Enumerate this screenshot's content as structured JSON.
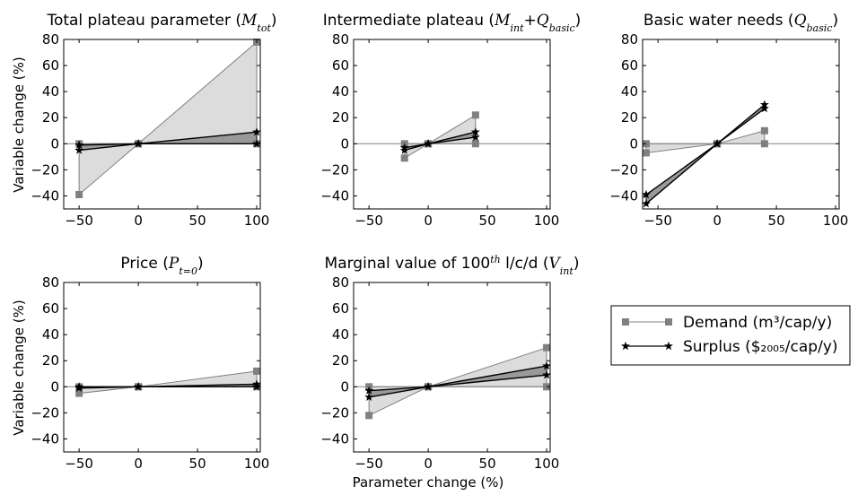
{
  "figure": {
    "ylabel": "Variable change (%)",
    "xlabel": "Parameter change (%)"
  },
  "legend": {
    "entries": [
      {
        "label": "Demand (m³/cap/y)",
        "marker": "square",
        "color": "#808080"
      },
      {
        "label": "Surplus ($₂₀₀₅/cap/y)",
        "marker": "star",
        "color": "#000000"
      }
    ]
  },
  "colors": {
    "demand": "#808080",
    "demand_fill": "#dcdcdc",
    "surplus": "#000000",
    "surplus_fill": "#999999",
    "zero_line": "#808080"
  },
  "chart_data": [
    {
      "type": "line",
      "title": "Total plateau parameter (M_tot)",
      "xlim": [
        -63,
        103
      ],
      "ylim": [
        -50,
        80
      ],
      "xticks": [
        -50,
        0,
        50,
        100
      ],
      "yticks": [
        -40,
        -20,
        0,
        20,
        40,
        60,
        80
      ],
      "x": [
        -50,
        0,
        100
      ],
      "series": [
        {
          "name": "Demand (m³/cap/y)",
          "upper": [
            0,
            0,
            78
          ],
          "lower": [
            -39,
            0,
            0
          ]
        },
        {
          "name": "Surplus ($₂₀₀₅/cap/y)",
          "upper": [
            -1,
            0,
            9
          ],
          "lower": [
            -5,
            0,
            0
          ]
        }
      ]
    },
    {
      "type": "line",
      "title": "Intermediate plateau (M_int+Q_basic)",
      "xlim": [
        -63,
        103
      ],
      "ylim": [
        -50,
        80
      ],
      "xticks": [
        -50,
        0,
        50,
        100
      ],
      "yticks": [
        -40,
        -20,
        0,
        20,
        40,
        60,
        80
      ],
      "x": [
        -20,
        0,
        40
      ],
      "series": [
        {
          "name": "Demand (m³/cap/y)",
          "upper": [
            0,
            0,
            22
          ],
          "lower": [
            -11,
            0,
            0
          ]
        },
        {
          "name": "Surplus ($₂₀₀₅/cap/y)",
          "upper": [
            -3,
            0,
            9
          ],
          "lower": [
            -5,
            0,
            5
          ]
        }
      ]
    },
    {
      "type": "line",
      "title": "Basic water needs (Q_basic)",
      "xlim": [
        -63,
        103
      ],
      "ylim": [
        -50,
        80
      ],
      "xticks": [
        -50,
        0,
        50,
        100
      ],
      "yticks": [
        -40,
        -20,
        0,
        20,
        40,
        60,
        80
      ],
      "x": [
        -60,
        0,
        40
      ],
      "series": [
        {
          "name": "Demand (m³/cap/y)",
          "upper": [
            0,
            0,
            10
          ],
          "lower": [
            -7,
            0,
            0
          ]
        },
        {
          "name": "Surplus ($₂₀₀₅/cap/y)",
          "upper": [
            -39,
            0,
            30
          ],
          "lower": [
            -46,
            0,
            27
          ]
        }
      ]
    },
    {
      "type": "line",
      "title": "Price (P_t=0)",
      "xlim": [
        -63,
        103
      ],
      "ylim": [
        -50,
        80
      ],
      "xticks": [
        -50,
        0,
        50,
        100
      ],
      "yticks": [
        -40,
        -20,
        0,
        20,
        40,
        60,
        80
      ],
      "x": [
        -50,
        0,
        100
      ],
      "series": [
        {
          "name": "Demand (m³/cap/y)",
          "upper": [
            0,
            0,
            12
          ],
          "lower": [
            -5,
            0,
            0
          ]
        },
        {
          "name": "Surplus ($₂₀₀₅/cap/y)",
          "upper": [
            0,
            0,
            2
          ],
          "lower": [
            -1,
            0,
            0
          ]
        }
      ]
    },
    {
      "type": "line",
      "title": "Marginal value of 100th l/c/d (V_int)",
      "xlim": [
        -63,
        103
      ],
      "ylim": [
        -50,
        80
      ],
      "xticks": [
        -50,
        0,
        50,
        100
      ],
      "yticks": [
        -40,
        -20,
        0,
        20,
        40,
        60,
        80
      ],
      "x": [
        -50,
        0,
        100
      ],
      "series": [
        {
          "name": "Demand (m³/cap/y)",
          "upper": [
            0,
            0,
            30
          ],
          "lower": [
            -22,
            0,
            0
          ]
        },
        {
          "name": "Surplus ($₂₀₀₅/cap/y)",
          "upper": [
            -3,
            0,
            16
          ],
          "lower": [
            -8,
            0,
            9
          ]
        }
      ]
    }
  ]
}
